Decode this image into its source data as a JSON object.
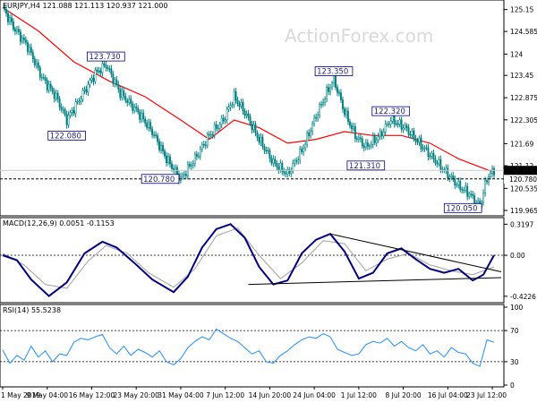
{
  "header": {
    "main_title": "EURJPY,H4  121.088 121.113 120.937 121.000",
    "macd_title": "MACD(12,26,9) 0.0051 -0.1153",
    "rsi_title": "RSI(14) 55.5238",
    "watermark": "ActionForex.com"
  },
  "colors": {
    "candle": "#008080",
    "ma": "#ff0000",
    "macd": "#000080",
    "signal": "#a0a0a0",
    "rsi": "#1e90ff",
    "trendline": "#000000",
    "label_border": "#000080"
  },
  "chart_data": [
    {
      "type": "candlestick",
      "title": "EURJPY,H4  121.088 121.113 120.937 121.000",
      "x_labels": [
        "1 May 2019",
        "9 May 04:00",
        "16 May 12:00",
        "23 May 20:00",
        "31 May 04:00",
        "7 Jun 12:00",
        "14 Jun 20:00",
        "24 Jun 04:00",
        "1 Jul 12:00",
        "8 Jul 20:00",
        "16 Jul 04:00",
        "23 Jul 12:00"
      ],
      "y_ticks": [
        125.15,
        124.585,
        124.0,
        123.45,
        122.875,
        122.305,
        121.69,
        121.12,
        120.535,
        119.965
      ],
      "ylim": [
        119.85,
        125.35
      ],
      "current_price": 121.0,
      "current_price_label": "121.000",
      "reference_level": 120.78,
      "reference_label": "120.780",
      "close_path": [
        {
          "x": 0,
          "y": 125.2
        },
        {
          "x": 6,
          "y": 124.7
        },
        {
          "x": 14,
          "y": 124.2
        },
        {
          "x": 22,
          "y": 123.4
        },
        {
          "x": 30,
          "y": 122.9
        },
        {
          "x": 36,
          "y": 122.3
        },
        {
          "x": 44,
          "y": 122.9
        },
        {
          "x": 52,
          "y": 123.5
        },
        {
          "x": 58,
          "y": 123.73
        },
        {
          "x": 66,
          "y": 123.0
        },
        {
          "x": 76,
          "y": 122.5
        },
        {
          "x": 84,
          "y": 122.0
        },
        {
          "x": 92,
          "y": 121.3
        },
        {
          "x": 100,
          "y": 120.78
        },
        {
          "x": 108,
          "y": 121.3
        },
        {
          "x": 116,
          "y": 121.9
        },
        {
          "x": 124,
          "y": 122.3
        },
        {
          "x": 130,
          "y": 122.9
        },
        {
          "x": 136,
          "y": 122.5
        },
        {
          "x": 144,
          "y": 121.8
        },
        {
          "x": 152,
          "y": 121.2
        },
        {
          "x": 160,
          "y": 120.9
        },
        {
          "x": 168,
          "y": 121.5
        },
        {
          "x": 176,
          "y": 122.4
        },
        {
          "x": 182,
          "y": 123.0
        },
        {
          "x": 186,
          "y": 123.35
        },
        {
          "x": 192,
          "y": 122.5
        },
        {
          "x": 198,
          "y": 121.9
        },
        {
          "x": 204,
          "y": 121.6
        },
        {
          "x": 212,
          "y": 121.9
        },
        {
          "x": 218,
          "y": 122.32
        },
        {
          "x": 226,
          "y": 122.1
        },
        {
          "x": 232,
          "y": 121.8
        },
        {
          "x": 240,
          "y": 121.4
        },
        {
          "x": 248,
          "y": 121.0
        },
        {
          "x": 256,
          "y": 120.6
        },
        {
          "x": 262,
          "y": 120.4
        },
        {
          "x": 268,
          "y": 120.05
        },
        {
          "x": 272,
          "y": 120.8
        },
        {
          "x": 276,
          "y": 121.0
        }
      ],
      "moving_average": [
        {
          "x": 0,
          "y": 125.2
        },
        {
          "x": 20,
          "y": 124.6
        },
        {
          "x": 40,
          "y": 123.8
        },
        {
          "x": 60,
          "y": 123.3
        },
        {
          "x": 80,
          "y": 122.9
        },
        {
          "x": 100,
          "y": 122.3
        },
        {
          "x": 116,
          "y": 121.8
        },
        {
          "x": 130,
          "y": 122.3
        },
        {
          "x": 144,
          "y": 122.1
        },
        {
          "x": 160,
          "y": 121.7
        },
        {
          "x": 176,
          "y": 121.8
        },
        {
          "x": 192,
          "y": 122.0
        },
        {
          "x": 208,
          "y": 121.9
        },
        {
          "x": 224,
          "y": 121.9
        },
        {
          "x": 240,
          "y": 121.7
        },
        {
          "x": 256,
          "y": 121.3
        },
        {
          "x": 276,
          "y": 120.95
        }
      ],
      "annotations": [
        {
          "label": "123.730",
          "x": 58,
          "y": 123.73
        },
        {
          "label": "122.080",
          "x": 36,
          "y": 122.08
        },
        {
          "label": "120.780",
          "x": 100,
          "y": 120.78
        },
        {
          "label": "123.350",
          "x": 186,
          "y": 123.35
        },
        {
          "label": "121.310",
          "x": 204,
          "y": 121.31
        },
        {
          "label": "122.320",
          "x": 218,
          "y": 122.32
        },
        {
          "label": "120.050",
          "x": 268,
          "y": 120.05
        }
      ]
    },
    {
      "type": "line",
      "title": "MACD(12,26,9) 0.0051 -0.1153",
      "y_ticks": [
        0.3197,
        0.0,
        -0.4226
      ],
      "ylim": [
        -0.47,
        0.36
      ],
      "series": [
        {
          "values": [
            {
              "x": 0,
              "y": 0.0
            },
            {
              "x": 8,
              "y": -0.05
            },
            {
              "x": 16,
              "y": -0.25
            },
            {
              "x": 26,
              "y": -0.42
            },
            {
              "x": 36,
              "y": -0.28
            },
            {
              "x": 46,
              "y": 0.02
            },
            {
              "x": 56,
              "y": 0.14
            },
            {
              "x": 64,
              "y": 0.08
            },
            {
              "x": 74,
              "y": -0.08
            },
            {
              "x": 84,
              "y": -0.25
            },
            {
              "x": 96,
              "y": -0.38
            },
            {
              "x": 104,
              "y": -0.22
            },
            {
              "x": 112,
              "y": 0.08
            },
            {
              "x": 120,
              "y": 0.27
            },
            {
              "x": 128,
              "y": 0.32
            },
            {
              "x": 136,
              "y": 0.18
            },
            {
              "x": 144,
              "y": -0.12
            },
            {
              "x": 152,
              "y": -0.3
            },
            {
              "x": 160,
              "y": -0.26
            },
            {
              "x": 168,
              "y": 0.02
            },
            {
              "x": 176,
              "y": 0.16
            },
            {
              "x": 184,
              "y": 0.22
            },
            {
              "x": 192,
              "y": 0.04
            },
            {
              "x": 200,
              "y": -0.24
            },
            {
              "x": 208,
              "y": -0.18
            },
            {
              "x": 216,
              "y": 0.02
            },
            {
              "x": 224,
              "y": 0.07
            },
            {
              "x": 232,
              "y": -0.04
            },
            {
              "x": 240,
              "y": -0.14
            },
            {
              "x": 248,
              "y": -0.18
            },
            {
              "x": 256,
              "y": -0.14
            },
            {
              "x": 264,
              "y": -0.26
            },
            {
              "x": 270,
              "y": -0.2
            },
            {
              "x": 276,
              "y": 0.0
            }
          ]
        },
        {
          "values": [
            {
              "x": 0,
              "y": 0.02
            },
            {
              "x": 12,
              "y": -0.1
            },
            {
              "x": 24,
              "y": -0.3
            },
            {
              "x": 36,
              "y": -0.34
            },
            {
              "x": 48,
              "y": -0.06
            },
            {
              "x": 58,
              "y": 0.1
            },
            {
              "x": 70,
              "y": 0.02
            },
            {
              "x": 82,
              "y": -0.18
            },
            {
              "x": 96,
              "y": -0.33
            },
            {
              "x": 108,
              "y": -0.14
            },
            {
              "x": 120,
              "y": 0.2
            },
            {
              "x": 132,
              "y": 0.28
            },
            {
              "x": 144,
              "y": 0.0
            },
            {
              "x": 156,
              "y": -0.24
            },
            {
              "x": 168,
              "y": -0.08
            },
            {
              "x": 180,
              "y": 0.15
            },
            {
              "x": 192,
              "y": 0.12
            },
            {
              "x": 204,
              "y": -0.16
            },
            {
              "x": 216,
              "y": -0.04
            },
            {
              "x": 228,
              "y": 0.02
            },
            {
              "x": 240,
              "y": -0.1
            },
            {
              "x": 252,
              "y": -0.16
            },
            {
              "x": 264,
              "y": -0.2
            },
            {
              "x": 276,
              "y": -0.12
            }
          ]
        }
      ],
      "trendlines": [
        {
          "from": {
            "x": 184,
            "y": 0.22
          },
          "to": {
            "x": 280,
            "y": -0.17
          }
        },
        {
          "from": {
            "x": 138,
            "y": -0.3
          },
          "to": {
            "x": 280,
            "y": -0.23
          }
        }
      ]
    },
    {
      "type": "line",
      "title": "RSI(14) 55.5238",
      "y_ticks": [
        100,
        70,
        30,
        0
      ],
      "ylim": [
        0,
        100
      ],
      "series": [
        {
          "values": [
            {
              "x": 0,
              "y": 45
            },
            {
              "x": 4,
              "y": 28
            },
            {
              "x": 8,
              "y": 38
            },
            {
              "x": 12,
              "y": 32
            },
            {
              "x": 16,
              "y": 50
            },
            {
              "x": 20,
              "y": 36
            },
            {
              "x": 24,
              "y": 44
            },
            {
              "x": 28,
              "y": 30
            },
            {
              "x": 32,
              "y": 40
            },
            {
              "x": 36,
              "y": 38
            },
            {
              "x": 40,
              "y": 55
            },
            {
              "x": 44,
              "y": 60
            },
            {
              "x": 48,
              "y": 58
            },
            {
              "x": 52,
              "y": 62
            },
            {
              "x": 56,
              "y": 65
            },
            {
              "x": 60,
              "y": 48
            },
            {
              "x": 64,
              "y": 40
            },
            {
              "x": 68,
              "y": 50
            },
            {
              "x": 72,
              "y": 38
            },
            {
              "x": 76,
              "y": 46
            },
            {
              "x": 80,
              "y": 42
            },
            {
              "x": 84,
              "y": 36
            },
            {
              "x": 88,
              "y": 44
            },
            {
              "x": 92,
              "y": 30
            },
            {
              "x": 96,
              "y": 26
            },
            {
              "x": 100,
              "y": 34
            },
            {
              "x": 104,
              "y": 48
            },
            {
              "x": 108,
              "y": 56
            },
            {
              "x": 112,
              "y": 62
            },
            {
              "x": 116,
              "y": 58
            },
            {
              "x": 120,
              "y": 72
            },
            {
              "x": 124,
              "y": 66
            },
            {
              "x": 128,
              "y": 60
            },
            {
              "x": 132,
              "y": 56
            },
            {
              "x": 136,
              "y": 48
            },
            {
              "x": 140,
              "y": 40
            },
            {
              "x": 144,
              "y": 44
            },
            {
              "x": 148,
              "y": 30
            },
            {
              "x": 152,
              "y": 28
            },
            {
              "x": 156,
              "y": 38
            },
            {
              "x": 160,
              "y": 44
            },
            {
              "x": 164,
              "y": 52
            },
            {
              "x": 168,
              "y": 58
            },
            {
              "x": 172,
              "y": 62
            },
            {
              "x": 176,
              "y": 60
            },
            {
              "x": 180,
              "y": 66
            },
            {
              "x": 184,
              "y": 62
            },
            {
              "x": 188,
              "y": 46
            },
            {
              "x": 192,
              "y": 42
            },
            {
              "x": 196,
              "y": 38
            },
            {
              "x": 200,
              "y": 40
            },
            {
              "x": 204,
              "y": 52
            },
            {
              "x": 208,
              "y": 56
            },
            {
              "x": 212,
              "y": 54
            },
            {
              "x": 216,
              "y": 60
            },
            {
              "x": 220,
              "y": 50
            },
            {
              "x": 224,
              "y": 56
            },
            {
              "x": 228,
              "y": 48
            },
            {
              "x": 232,
              "y": 44
            },
            {
              "x": 236,
              "y": 52
            },
            {
              "x": 240,
              "y": 40
            },
            {
              "x": 244,
              "y": 44
            },
            {
              "x": 248,
              "y": 36
            },
            {
              "x": 252,
              "y": 48
            },
            {
              "x": 256,
              "y": 42
            },
            {
              "x": 260,
              "y": 40
            },
            {
              "x": 264,
              "y": 28
            },
            {
              "x": 268,
              "y": 24
            },
            {
              "x": 272,
              "y": 58
            },
            {
              "x": 276,
              "y": 55
            }
          ]
        }
      ]
    }
  ]
}
